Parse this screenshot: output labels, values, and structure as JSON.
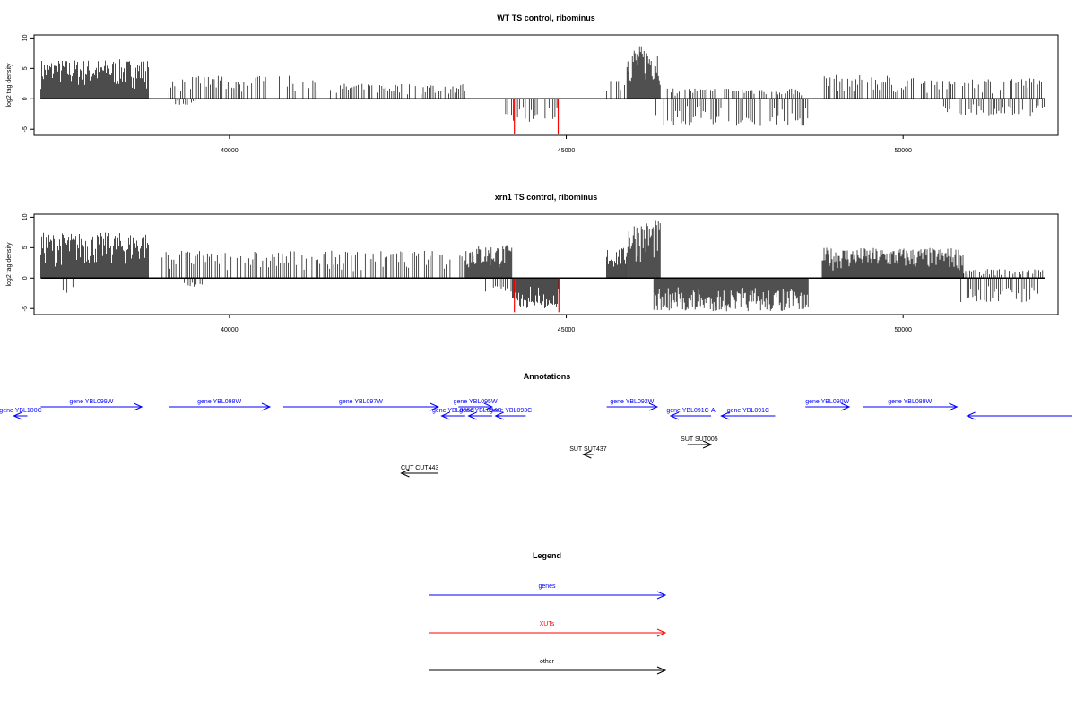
{
  "chart_data": [
    {
      "type": "bar",
      "title": "WT TS control, ribominus",
      "xlabel": "",
      "ylabel": "log2 tag density",
      "xlim": [
        37100,
        52300
      ],
      "ylim": [
        -6,
        10.5
      ],
      "xticks": [
        40000,
        45000,
        50000
      ],
      "yticks": [
        -5,
        0,
        5,
        10
      ],
      "series": [
        {
          "strand": "plus",
          "color": "#000000",
          "regions": [
            {
              "start": 37200,
              "end": 38800,
              "max": 6.5
            },
            {
              "start": 39100,
              "end": 41300,
              "max": 3.8
            },
            {
              "start": 41500,
              "end": 43500,
              "max": 2.5
            },
            {
              "start": 45600,
              "end": 45900,
              "max": 3.0
            },
            {
              "start": 45900,
              "end": 46400,
              "max": 8.8
            },
            {
              "start": 46500,
              "end": 48500,
              "max": 1.8
            },
            {
              "start": 48800,
              "end": 49800,
              "max": 4.0
            },
            {
              "start": 49800,
              "end": 52100,
              "max": 3.5
            }
          ]
        },
        {
          "strand": "minus",
          "color": "#000000",
          "regions": [
            {
              "start": 39200,
              "end": 39500,
              "max": 1.0
            },
            {
              "start": 44100,
              "end": 44900,
              "max": 4.0
            },
            {
              "start": 46300,
              "end": 48600,
              "max": 4.5
            },
            {
              "start": 50600,
              "end": 52100,
              "max": 2.8
            }
          ]
        },
        {
          "strand": "minus-highlight",
          "color": "#ff0000",
          "points": [
            {
              "x": 44230,
              "y": -5.8
            },
            {
              "x": 44880,
              "y": -5.8
            }
          ]
        }
      ]
    },
    {
      "type": "bar",
      "title": "xrn1 TS control, ribominus",
      "xlabel": "",
      "ylabel": "log2 tag density",
      "xlim": [
        37100,
        52300
      ],
      "ylim": [
        -6,
        10.5
      ],
      "xticks": [
        40000,
        45000,
        50000
      ],
      "yticks": [
        -5,
        0,
        5,
        10
      ],
      "series": [
        {
          "strand": "plus",
          "color": "#000000",
          "regions": [
            {
              "start": 37200,
              "end": 38800,
              "max": 7.5
            },
            {
              "start": 39000,
              "end": 43500,
              "max": 4.5
            },
            {
              "start": 43500,
              "end": 44200,
              "max": 5.5
            },
            {
              "start": 45600,
              "end": 45900,
              "max": 5.0
            },
            {
              "start": 45900,
              "end": 46400,
              "max": 9.5
            },
            {
              "start": 48800,
              "end": 50900,
              "max": 5.0
            },
            {
              "start": 50900,
              "end": 52100,
              "max": 1.5
            }
          ]
        },
        {
          "strand": "minus",
          "color": "#000000",
          "regions": [
            {
              "start": 37500,
              "end": 37700,
              "max": 2.6
            },
            {
              "start": 39300,
              "end": 39600,
              "max": 1.5
            },
            {
              "start": 43800,
              "end": 44200,
              "max": 2.5
            },
            {
              "start": 44200,
              "end": 44900,
              "max": 5.0
            },
            {
              "start": 46300,
              "end": 48600,
              "max": 5.5
            },
            {
              "start": 50800,
              "end": 52100,
              "max": 4.0
            }
          ]
        },
        {
          "strand": "minus-highlight",
          "color": "#ff0000",
          "points": [
            {
              "x": 44230,
              "y": -5.6
            },
            {
              "x": 44890,
              "y": -5.6
            }
          ]
        }
      ]
    }
  ],
  "annotations": {
    "title": "Annotations",
    "features": [
      {
        "label": "gene YBL100C",
        "start": 37000,
        "end": 36800,
        "row": 1,
        "type": "gene"
      },
      {
        "label": "gene YBL099W",
        "start": 37200,
        "end": 38700,
        "row": 0,
        "type": "gene"
      },
      {
        "label": "gene YBL098W",
        "start": 39100,
        "end": 40600,
        "row": 0,
        "type": "gene"
      },
      {
        "label": "gene YBL097W",
        "start": 40800,
        "end": 43100,
        "row": 0,
        "type": "gene"
      },
      {
        "label": "gene YBL095W",
        "start": 43400,
        "end": 43900,
        "row": 0,
        "type": "gene"
      },
      {
        "label": "gene YBL096C",
        "start": 43500,
        "end": 43150,
        "row": 1,
        "type": "gene"
      },
      {
        "label": "gene YBL094C",
        "start": 43900,
        "end": 43550,
        "row": 1,
        "type": "gene"
      },
      {
        "label": "gene YBL093C",
        "start": 44400,
        "end": 43950,
        "row": 1,
        "type": "gene"
      },
      {
        "label": "gene YBL092W",
        "start": 45600,
        "end": 46350,
        "row": 0,
        "type": "gene"
      },
      {
        "label": "gene YBL091C-A",
        "start": 47150,
        "end": 46550,
        "row": 1,
        "type": "gene"
      },
      {
        "label": "gene YBL091C",
        "start": 48100,
        "end": 47300,
        "row": 1,
        "type": "gene"
      },
      {
        "label": "gene YBL090W",
        "start": 48550,
        "end": 49200,
        "row": 0,
        "type": "gene"
      },
      {
        "label": "gene YBL089W",
        "start": 49400,
        "end": 50800,
        "row": 0,
        "type": "gene"
      },
      {
        "label": "",
        "start": 52500,
        "end": 50950,
        "row": 1,
        "type": "gene"
      },
      {
        "label": "SUT SUT437",
        "start": 45400,
        "end": 45250,
        "row": 3,
        "type": "other"
      },
      {
        "label": "SUT SUT005",
        "start": 46800,
        "end": 47150,
        "row": 2,
        "type": "other"
      },
      {
        "label": "CUT CUT443",
        "start": 43100,
        "end": 42550,
        "row": 4,
        "type": "other"
      }
    ]
  },
  "legend": {
    "title": "Legend",
    "items": [
      {
        "label": "genes",
        "color": "#0000ff"
      },
      {
        "label": "XUTs",
        "color": "#ff0000"
      },
      {
        "label": "other",
        "color": "#000000"
      }
    ]
  }
}
